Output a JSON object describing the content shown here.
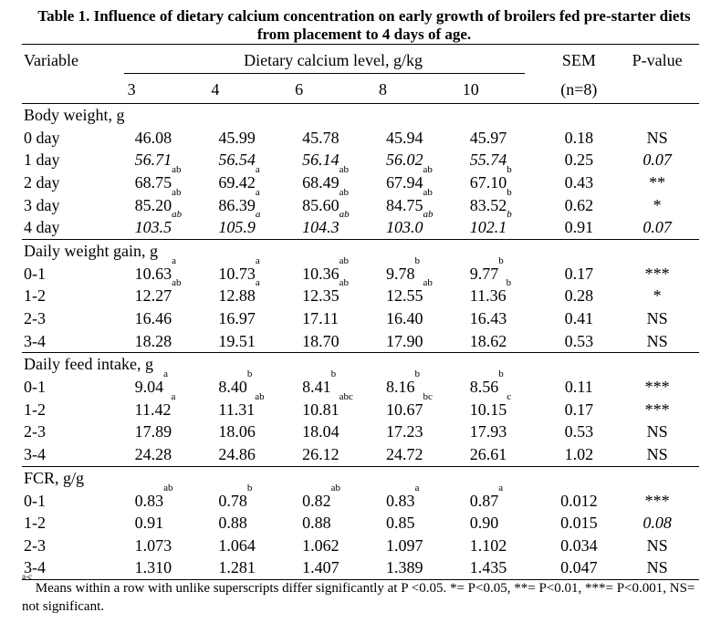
{
  "caption": "Table 1. Influence of dietary calcium concentration on early growth of broilers fed pre-starter diets from placement to 4 days of age.",
  "header": {
    "variable": "Variable",
    "levels_title": "Dietary calcium level, g/kg",
    "levels": [
      "3",
      "4",
      "6",
      "8",
      "10"
    ],
    "sem": "SEM",
    "sem_n": "(n=8)",
    "pvalue": "P-value"
  },
  "sections": [
    {
      "title": "Body weight, g",
      "rows": [
        {
          "label": "0 day",
          "italic": false,
          "values": [
            [
              "46.08",
              ""
            ],
            [
              "45.99",
              ""
            ],
            [
              "45.78",
              ""
            ],
            [
              "45.94",
              ""
            ],
            [
              "45.97",
              ""
            ]
          ],
          "sem": "0.18",
          "p": "NS"
        },
        {
          "label": "1 day",
          "italic": true,
          "values": [
            [
              "56.71",
              ""
            ],
            [
              "56.54",
              ""
            ],
            [
              "56.14",
              ""
            ],
            [
              "56.02",
              ""
            ],
            [
              "55.74",
              ""
            ]
          ],
          "sem": "0.25",
          "p": "0.07"
        },
        {
          "label": "2 day",
          "italic": false,
          "values": [
            [
              "68.75",
              "ab"
            ],
            [
              "69.42",
              "a"
            ],
            [
              "68.49",
              "ab"
            ],
            [
              "67.94",
              "ab"
            ],
            [
              "67.10",
              "b"
            ]
          ],
          "sem": "0.43",
          "p": "**"
        },
        {
          "label": "3 day",
          "italic": false,
          "values": [
            [
              "85.20",
              "ab"
            ],
            [
              "86.39",
              "a"
            ],
            [
              "85.60",
              "ab"
            ],
            [
              "84.75",
              "ab"
            ],
            [
              "83.52",
              "b"
            ]
          ],
          "sem": "0.62",
          "p": "*"
        },
        {
          "label": "4 day",
          "italic": true,
          "values": [
            [
              "103.5",
              "ab"
            ],
            [
              "105.9",
              "a"
            ],
            [
              "104.3",
              "ab"
            ],
            [
              "103.0",
              "ab"
            ],
            [
              "102.1",
              "b"
            ]
          ],
          "sem": "0.91",
          "p": "0.07"
        }
      ]
    },
    {
      "title": "Daily weight gain, g",
      "rows": [
        {
          "label": "0-1",
          "italic": false,
          "values": [
            [
              "10.63",
              "a"
            ],
            [
              "10.73",
              "a"
            ],
            [
              "10.36",
              "ab"
            ],
            [
              "9.78",
              "b"
            ],
            [
              "9.77",
              "b"
            ]
          ],
          "sem": "0.17",
          "p": "***"
        },
        {
          "label": "1-2",
          "italic": false,
          "values": [
            [
              "12.27",
              "ab"
            ],
            [
              "12.88",
              "a"
            ],
            [
              "12.35",
              "ab"
            ],
            [
              "12.55",
              "ab"
            ],
            [
              "11.36",
              "b"
            ]
          ],
          "sem": "0.28",
          "p": "*"
        },
        {
          "label": "2-3",
          "italic": false,
          "values": [
            [
              "16.46",
              ""
            ],
            [
              "16.97",
              ""
            ],
            [
              "17.11",
              ""
            ],
            [
              "16.40",
              ""
            ],
            [
              "16.43",
              ""
            ]
          ],
          "sem": "0.41",
          "p": "NS"
        },
        {
          "label": "3-4",
          "italic": false,
          "values": [
            [
              "18.28",
              ""
            ],
            [
              "19.51",
              ""
            ],
            [
              "18.70",
              ""
            ],
            [
              "17.90",
              ""
            ],
            [
              "18.62",
              ""
            ]
          ],
          "sem": "0.53",
          "p": "NS"
        }
      ]
    },
    {
      "title": "Daily feed intake, g",
      "rows": [
        {
          "label": "0-1",
          "italic": false,
          "values": [
            [
              "9.04",
              "a"
            ],
            [
              "8.40",
              "b"
            ],
            [
              "8.41",
              "b"
            ],
            [
              "8.16",
              "b"
            ],
            [
              "8.56",
              "b"
            ]
          ],
          "sem": "0.11",
          "p": "***"
        },
        {
          "label": "1-2",
          "italic": false,
          "values": [
            [
              "11.42",
              "a"
            ],
            [
              "11.31",
              "ab"
            ],
            [
              "10.81",
              "abc"
            ],
            [
              "10.67",
              "bc"
            ],
            [
              "10.15",
              "c"
            ]
          ],
          "sem": "0.17",
          "p": "***"
        },
        {
          "label": "2-3",
          "italic": false,
          "values": [
            [
              "17.89",
              ""
            ],
            [
              "18.06",
              ""
            ],
            [
              "18.04",
              ""
            ],
            [
              "17.23",
              ""
            ],
            [
              "17.93",
              ""
            ]
          ],
          "sem": "0.53",
          "p": "NS"
        },
        {
          "label": "3-4",
          "italic": false,
          "values": [
            [
              "24.28",
              ""
            ],
            [
              "24.86",
              ""
            ],
            [
              "26.12",
              ""
            ],
            [
              "24.72",
              ""
            ],
            [
              "26.61",
              ""
            ]
          ],
          "sem": "1.02",
          "p": "NS"
        }
      ]
    },
    {
      "title": "FCR, g/g",
      "rows": [
        {
          "label": "0-1",
          "italic": false,
          "values": [
            [
              "0.83",
              "ab"
            ],
            [
              "0.78",
              "b"
            ],
            [
              "0.82",
              "ab"
            ],
            [
              "0.83",
              "a"
            ],
            [
              "0.87",
              "a"
            ]
          ],
          "sem": "0.012",
          "p": "***"
        },
        {
          "label": "1-2",
          "italic": false,
          "values": [
            [
              "0.91",
              ""
            ],
            [
              "0.88",
              ""
            ],
            [
              "0.88",
              ""
            ],
            [
              "0.85",
              ""
            ],
            [
              "0.90",
              ""
            ]
          ],
          "sem": "0.015",
          "p": "0.08"
        },
        {
          "label": "2-3",
          "italic": false,
          "values": [
            [
              "1.073",
              ""
            ],
            [
              "1.064",
              ""
            ],
            [
              "1.062",
              ""
            ],
            [
              "1.097",
              ""
            ],
            [
              "1.102",
              ""
            ]
          ],
          "sem": "0.034",
          "p": "NS"
        },
        {
          "label": "3-4",
          "italic": false,
          "values": [
            [
              "1.310",
              ""
            ],
            [
              "1.281",
              ""
            ],
            [
              "1.407",
              ""
            ],
            [
              "1.389",
              ""
            ],
            [
              "1.435",
              ""
            ]
          ],
          "sem": "0.047",
          "p": "NS"
        }
      ]
    }
  ],
  "footnote": {
    "marker": "a-c",
    "text": " Means within a row with unlike superscripts differ significantly at P <0.05. *= P<0.05, **= P<0.01, ***= P<0.001, NS= not significant."
  }
}
